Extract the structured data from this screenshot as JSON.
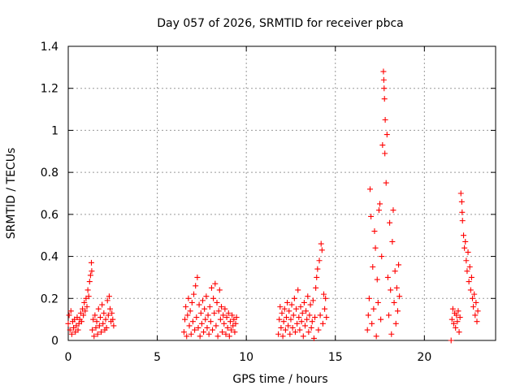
{
  "chart_data": {
    "type": "scatter",
    "title": "Day 057 of 2026, SRMTID for receiver pbca",
    "xlabel": "GPS time / hours",
    "ylabel": "SRMTID / TECUs",
    "xlim": [
      0,
      24
    ],
    "ylim": [
      0,
      1.4
    ],
    "x_ticks": [
      0,
      5,
      10,
      15,
      20
    ],
    "x_tick_labels": [
      "0",
      "5",
      "10",
      "15",
      "20"
    ],
    "y_ticks": [
      0,
      0.2,
      0.4,
      0.6,
      0.8,
      1.0,
      1.2,
      1.4
    ],
    "y_tick_labels": [
      "0",
      "0.2",
      "0.4",
      "0.6",
      "0.8",
      "1",
      "1.2",
      "1.4"
    ],
    "grid": true,
    "marker": "+",
    "colors": {
      "points": "#ff0000",
      "grid": "#999999",
      "axes": "#000000"
    },
    "series": [
      {
        "name": "SRMTID",
        "points": [
          [
            0.0,
            0.08
          ],
          [
            0.05,
            0.12
          ],
          [
            0.1,
            0.05
          ],
          [
            0.15,
            0.14
          ],
          [
            0.2,
            0.03
          ],
          [
            0.25,
            0.09
          ],
          [
            0.3,
            0.06
          ],
          [
            0.35,
            0.1
          ],
          [
            0.4,
            0.04
          ],
          [
            0.45,
            0.07
          ],
          [
            0.5,
            0.11
          ],
          [
            0.55,
            0.05
          ],
          [
            0.6,
            0.08
          ],
          [
            0.65,
            0.1
          ],
          [
            0.7,
            0.13
          ],
          [
            0.75,
            0.09
          ],
          [
            0.8,
            0.15
          ],
          [
            0.85,
            0.12
          ],
          [
            0.9,
            0.18
          ],
          [
            0.95,
            0.14
          ],
          [
            1.0,
            0.2
          ],
          [
            1.05,
            0.16
          ],
          [
            1.1,
            0.24
          ],
          [
            1.15,
            0.21
          ],
          [
            1.2,
            0.28
          ],
          [
            1.25,
            0.31
          ],
          [
            1.3,
            0.37
          ],
          [
            1.32,
            0.33
          ],
          [
            1.35,
            0.05
          ],
          [
            1.4,
            0.1
          ],
          [
            1.45,
            0.02
          ],
          [
            1.5,
            0.12
          ],
          [
            1.55,
            0.06
          ],
          [
            1.6,
            0.09
          ],
          [
            1.65,
            0.03
          ],
          [
            1.7,
            0.15
          ],
          [
            1.75,
            0.07
          ],
          [
            1.8,
            0.11
          ],
          [
            1.85,
            0.04
          ],
          [
            1.9,
            0.17
          ],
          [
            1.95,
            0.08
          ],
          [
            2.0,
            0.13
          ],
          [
            2.05,
            0.05
          ],
          [
            2.1,
            0.1
          ],
          [
            2.15,
            0.06
          ],
          [
            2.2,
            0.19
          ],
          [
            2.25,
            0.12
          ],
          [
            2.3,
            0.21
          ],
          [
            2.35,
            0.15
          ],
          [
            2.4,
            0.09
          ],
          [
            2.45,
            0.13
          ],
          [
            2.5,
            0.1
          ],
          [
            2.55,
            0.07
          ],
          [
            6.5,
            0.04
          ],
          [
            6.55,
            0.1
          ],
          [
            6.6,
            0.16
          ],
          [
            6.65,
            0.02
          ],
          [
            6.7,
            0.12
          ],
          [
            6.75,
            0.2
          ],
          [
            6.8,
            0.07
          ],
          [
            6.85,
            0.14
          ],
          [
            6.9,
            0.03
          ],
          [
            6.95,
            0.18
          ],
          [
            7.0,
            0.09
          ],
          [
            7.05,
            0.22
          ],
          [
            7.1,
            0.05
          ],
          [
            7.15,
            0.26
          ],
          [
            7.2,
            0.11
          ],
          [
            7.25,
            0.3
          ],
          [
            7.3,
            0.06
          ],
          [
            7.35,
            0.17
          ],
          [
            7.4,
            0.02
          ],
          [
            7.45,
            0.13
          ],
          [
            7.5,
            0.08
          ],
          [
            7.55,
            0.19
          ],
          [
            7.6,
            0.04
          ],
          [
            7.65,
            0.15
          ],
          [
            7.7,
            0.1
          ],
          [
            7.75,
            0.21
          ],
          [
            7.8,
            0.06
          ],
          [
            7.85,
            0.12
          ],
          [
            7.9,
            0.03
          ],
          [
            7.95,
            0.16
          ],
          [
            8.0,
            0.09
          ],
          [
            8.05,
            0.25
          ],
          [
            8.1,
            0.05
          ],
          [
            8.15,
            0.2
          ],
          [
            8.2,
            0.13
          ],
          [
            8.25,
            0.27
          ],
          [
            8.3,
            0.07
          ],
          [
            8.35,
            0.18
          ],
          [
            8.4,
            0.02
          ],
          [
            8.45,
            0.14
          ],
          [
            8.5,
            0.24
          ],
          [
            8.55,
            0.1
          ],
          [
            8.6,
            0.16
          ],
          [
            8.65,
            0.04
          ],
          [
            8.7,
            0.12
          ],
          [
            8.75,
            0.08
          ],
          [
            8.8,
            0.15
          ],
          [
            8.85,
            0.03
          ],
          [
            8.9,
            0.11
          ],
          [
            8.95,
            0.06
          ],
          [
            9.0,
            0.13
          ],
          [
            9.05,
            0.02
          ],
          [
            9.1,
            0.09
          ],
          [
            9.15,
            0.05
          ],
          [
            9.2,
            0.12
          ],
          [
            9.25,
            0.07
          ],
          [
            9.3,
            0.1
          ],
          [
            9.35,
            0.04
          ],
          [
            9.4,
            0.08
          ],
          [
            9.45,
            0.11
          ],
          [
            11.8,
            0.03
          ],
          [
            11.85,
            0.1
          ],
          [
            11.9,
            0.16
          ],
          [
            11.95,
            0.06
          ],
          [
            12.0,
            0.13
          ],
          [
            12.05,
            0.02
          ],
          [
            12.1,
            0.09
          ],
          [
            12.15,
            0.15
          ],
          [
            12.2,
            0.05
          ],
          [
            12.25,
            0.11
          ],
          [
            12.3,
            0.18
          ],
          [
            12.35,
            0.07
          ],
          [
            12.4,
            0.14
          ],
          [
            12.45,
            0.03
          ],
          [
            12.5,
            0.1
          ],
          [
            12.55,
            0.17
          ],
          [
            12.6,
            0.06
          ],
          [
            12.65,
            0.12
          ],
          [
            12.7,
            0.2
          ],
          [
            12.75,
            0.04
          ],
          [
            12.8,
            0.15
          ],
          [
            12.85,
            0.08
          ],
          [
            12.9,
            0.24
          ],
          [
            12.95,
            0.11
          ],
          [
            13.0,
            0.05
          ],
          [
            13.05,
            0.16
          ],
          [
            13.1,
            0.09
          ],
          [
            13.15,
            0.13
          ],
          [
            13.2,
            0.02
          ],
          [
            13.25,
            0.18
          ],
          [
            13.3,
            0.07
          ],
          [
            13.35,
            0.14
          ],
          [
            13.4,
            0.1
          ],
          [
            13.45,
            0.21
          ],
          [
            13.5,
            0.04
          ],
          [
            13.55,
            0.12
          ],
          [
            13.6,
            0.17
          ],
          [
            13.65,
            0.06
          ],
          [
            13.7,
            0.09
          ],
          [
            13.75,
            0.19
          ],
          [
            13.8,
            0.01
          ],
          [
            13.85,
            0.11
          ],
          [
            13.9,
            0.25
          ],
          [
            13.95,
            0.3
          ],
          [
            14.0,
            0.34
          ],
          [
            14.05,
            0.05
          ],
          [
            14.1,
            0.38
          ],
          [
            14.15,
            0.12
          ],
          [
            14.2,
            0.46
          ],
          [
            14.25,
            0.43
          ],
          [
            14.3,
            0.08
          ],
          [
            14.35,
            0.22
          ],
          [
            14.4,
            0.15
          ],
          [
            14.45,
            0.2
          ],
          [
            14.5,
            0.11
          ],
          [
            16.8,
            0.05
          ],
          [
            16.85,
            0.12
          ],
          [
            16.9,
            0.2
          ],
          [
            16.95,
            0.72
          ],
          [
            17.0,
            0.59
          ],
          [
            17.05,
            0.08
          ],
          [
            17.1,
            0.35
          ],
          [
            17.15,
            0.15
          ],
          [
            17.2,
            0.52
          ],
          [
            17.25,
            0.44
          ],
          [
            17.3,
            0.02
          ],
          [
            17.35,
            0.29
          ],
          [
            17.4,
            0.18
          ],
          [
            17.45,
            0.62
          ],
          [
            17.5,
            0.65
          ],
          [
            17.55,
            0.1
          ],
          [
            17.6,
            0.4
          ],
          [
            17.65,
            0.93
          ],
          [
            17.7,
            1.28
          ],
          [
            17.72,
            1.24
          ],
          [
            17.74,
            1.2
          ],
          [
            17.76,
            1.15
          ],
          [
            17.78,
            0.89
          ],
          [
            17.8,
            1.05
          ],
          [
            17.85,
            0.75
          ],
          [
            17.9,
            0.98
          ],
          [
            17.95,
            0.3
          ],
          [
            18.0,
            0.12
          ],
          [
            18.05,
            0.56
          ],
          [
            18.1,
            0.24
          ],
          [
            18.15,
            0.03
          ],
          [
            18.2,
            0.47
          ],
          [
            18.25,
            0.62
          ],
          [
            18.3,
            0.18
          ],
          [
            18.35,
            0.33
          ],
          [
            18.4,
            0.08
          ],
          [
            18.45,
            0.25
          ],
          [
            18.5,
            0.14
          ],
          [
            18.55,
            0.36
          ],
          [
            18.6,
            0.21
          ],
          [
            21.5,
            0.0
          ],
          [
            21.55,
            0.1
          ],
          [
            21.6,
            0.15
          ],
          [
            21.65,
            0.08
          ],
          [
            21.7,
            0.13
          ],
          [
            21.75,
            0.06
          ],
          [
            21.8,
            0.12
          ],
          [
            21.85,
            0.09
          ],
          [
            21.9,
            0.14
          ],
          [
            21.95,
            0.04
          ],
          [
            22.0,
            0.11
          ],
          [
            22.05,
            0.7
          ],
          [
            22.1,
            0.66
          ],
          [
            22.12,
            0.61
          ],
          [
            22.14,
            0.57
          ],
          [
            22.2,
            0.5
          ],
          [
            22.25,
            0.44
          ],
          [
            22.3,
            0.47
          ],
          [
            22.35,
            0.38
          ],
          [
            22.4,
            0.33
          ],
          [
            22.45,
            0.42
          ],
          [
            22.5,
            0.28
          ],
          [
            22.55,
            0.35
          ],
          [
            22.6,
            0.24
          ],
          [
            22.65,
            0.3
          ],
          [
            22.7,
            0.2
          ],
          [
            22.75,
            0.16
          ],
          [
            22.8,
            0.22
          ],
          [
            22.85,
            0.12
          ],
          [
            22.9,
            0.18
          ],
          [
            22.95,
            0.09
          ],
          [
            23.0,
            0.14
          ]
        ]
      }
    ]
  }
}
